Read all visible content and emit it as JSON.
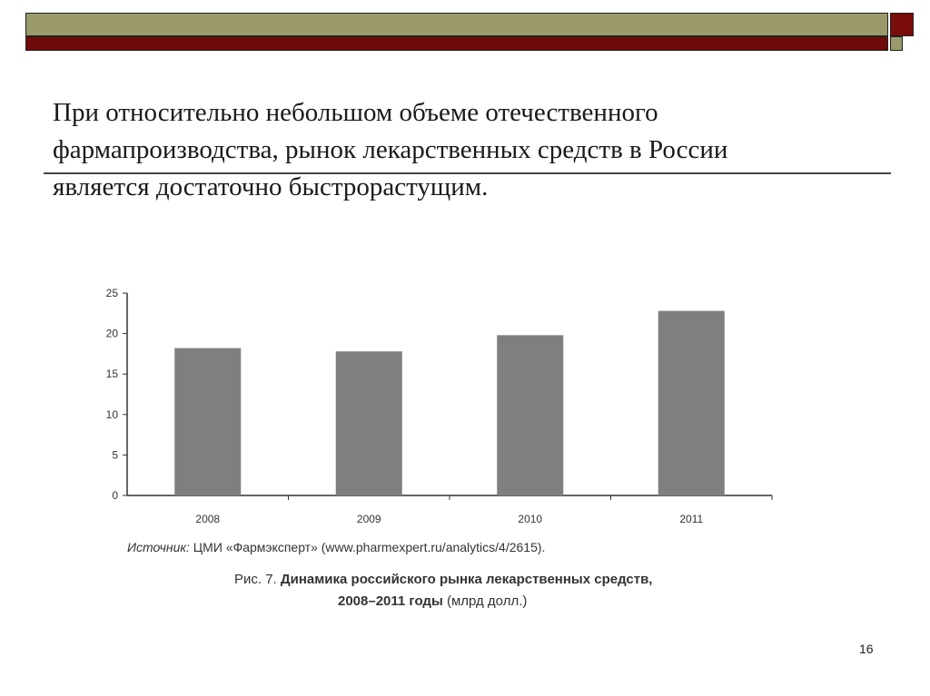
{
  "slide": {
    "heading_line1": "При относительно небольшом объеме отечественного",
    "heading_line2": "фармапроизводства, рынок лекарственных средств в России",
    "heading_line3": "является достаточно быстрорастущим.",
    "page_number": "16"
  },
  "caption": {
    "source_label": "Источник:",
    "source_text": " ЦМИ «Фармэксперт» (www.pharmexpert.ru/analytics/4/2615).",
    "figure_prefix": "Рис. 7. ",
    "figure_title_line1": "Динамика российского рынка лекарственных средств,",
    "figure_years": "2008–2011 годы",
    "figure_units": " (млрд долл.)"
  },
  "colors": {
    "bar": "#7f7f7f",
    "top_bar_olive": "#9a9a6a",
    "top_bar_maroon": "#6e0a0a"
  },
  "chart_data": {
    "type": "bar",
    "categories": [
      "2008",
      "2009",
      "2010",
      "2011"
    ],
    "values": [
      18.2,
      17.8,
      19.8,
      22.8
    ],
    "ylim": [
      0,
      25
    ],
    "yticks": [
      0,
      5,
      10,
      15,
      20,
      25
    ],
    "grid": false,
    "title": "",
    "xlabel": "",
    "ylabel": ""
  }
}
